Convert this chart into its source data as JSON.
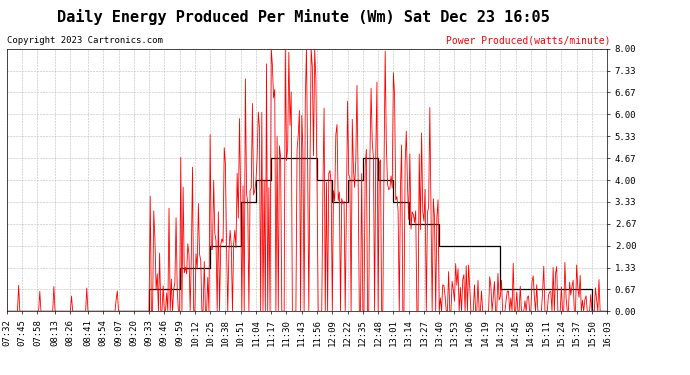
{
  "title": "Daily Energy Produced Per Minute (Wm) Sat Dec 23 16:05",
  "copyright": "Copyright 2023 Cartronics.com",
  "legend_label": "Power Produced(watts/minute)",
  "ylim": [
    0.0,
    8.0
  ],
  "yticks": [
    0.0,
    0.67,
    1.33,
    2.0,
    2.67,
    3.33,
    4.0,
    4.67,
    5.33,
    6.0,
    6.67,
    7.33,
    8.0
  ],
  "background_color": "#ffffff",
  "grid_color": "#aaaaaa",
  "line_color_red": "#ff0000",
  "line_color_black": "#000000",
  "title_fontsize": 11,
  "tick_label_fontsize": 6.5,
  "x_tick_labels": [
    "07:32",
    "07:45",
    "07:58",
    "08:13",
    "08:26",
    "08:41",
    "08:54",
    "09:07",
    "09:20",
    "09:33",
    "09:46",
    "09:59",
    "10:12",
    "10:25",
    "10:38",
    "10:51",
    "11:04",
    "11:17",
    "11:30",
    "11:43",
    "11:56",
    "12:09",
    "12:22",
    "12:35",
    "12:48",
    "13:01",
    "13:14",
    "13:27",
    "13:40",
    "13:53",
    "14:06",
    "14:19",
    "14:32",
    "14:45",
    "14:58",
    "15:11",
    "15:24",
    "15:37",
    "15:50",
    "16:03"
  ],
  "stepped_values": [
    0.0,
    0.0,
    0.0,
    0.0,
    0.0,
    0.0,
    0.0,
    0.0,
    0.0,
    0.67,
    0.67,
    1.33,
    1.33,
    2.0,
    2.0,
    3.33,
    4.0,
    4.67,
    4.67,
    4.67,
    4.0,
    3.33,
    4.0,
    4.67,
    4.0,
    3.33,
    2.67,
    2.67,
    2.0,
    2.0,
    2.0,
    2.0,
    0.67,
    0.67,
    0.67,
    0.67,
    0.67,
    0.67,
    0.0,
    0.0
  ]
}
